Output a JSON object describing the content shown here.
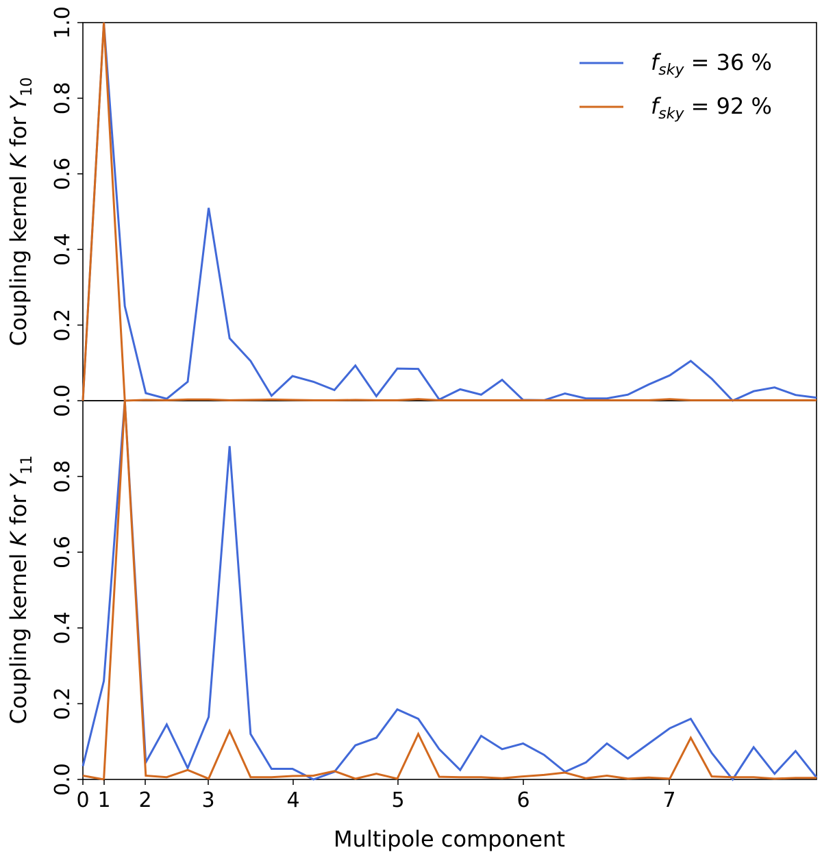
{
  "chart_data": {
    "type": "line",
    "xlabel": "Multipole component",
    "x_ticks": [
      "0",
      "1",
      "2",
      "3",
      "4",
      "5",
      "6",
      "7"
    ],
    "colors": {
      "fsky36": "#4169d8",
      "fsky92": "#d2691e",
      "axis": "#000000"
    },
    "legend": {
      "placement": "top-right",
      "entries": [
        {
          "key": "fsky36",
          "math_var": "f",
          "math_sub": "sky",
          "text": " = 36 %"
        },
        {
          "key": "fsky92",
          "math_var": "f",
          "math_sub": "sky",
          "text": " = 92 %"
        }
      ]
    },
    "panels": [
      {
        "id": "y10",
        "ylabel_prefix": "Coupling kernel ",
        "ylabel_var": "K",
        "ylabel_mid": " for ",
        "ylabel_sym": "Y",
        "ylabel_sub": "10",
        "ylim": [
          0,
          1.0
        ],
        "y_ticks": [
          "0.0",
          "0.2",
          "0.4",
          "0.6",
          "0.8",
          "1.0"
        ],
        "series": [
          {
            "name": "fsky36",
            "values": [
              0.0,
              1.0,
              0.25,
              0.02,
              0.005,
              0.05,
              0.51,
              0.165,
              0.105,
              0.013,
              0.065,
              0.05,
              0.028,
              0.093,
              0.012,
              0.085,
              0.084,
              0.003,
              0.03,
              0.016,
              0.055,
              0.002,
              0.001,
              0.019,
              0.006,
              0.006,
              0.016,
              0.043,
              0.067,
              0.105,
              0.058,
              0.0,
              0.025,
              0.035,
              0.015,
              0.008
            ]
          },
          {
            "name": "fsky92",
            "values": [
              0.0,
              1.0,
              0.0,
              0.002,
              0.001,
              0.003,
              0.003,
              0.001,
              0.002,
              0.003,
              0.002,
              0.001,
              0.001,
              0.002,
              0.001,
              0.001,
              0.004,
              0.001,
              0.001,
              0.001,
              0.001,
              0.001,
              0.001,
              0.001,
              0.001,
              0.001,
              0.001,
              0.001,
              0.004,
              0.001,
              0.001,
              0.001,
              0.001,
              0.001,
              0.001,
              0.001
            ]
          }
        ]
      },
      {
        "id": "y11",
        "ylabel_prefix": "Coupling kernel ",
        "ylabel_var": "K",
        "ylabel_mid": " for ",
        "ylabel_sym": "Y",
        "ylabel_sub": "11",
        "ylim": [
          0,
          1.0
        ],
        "y_ticks": [
          "0.0",
          "0.2",
          "0.4",
          "0.6",
          "0.8"
        ],
        "series": [
          {
            "name": "fsky36",
            "values": [
              0.035,
              0.26,
              1.0,
              0.045,
              0.145,
              0.03,
              0.165,
              0.88,
              0.12,
              0.028,
              0.028,
              0.0,
              0.02,
              0.09,
              0.11,
              0.185,
              0.16,
              0.08,
              0.025,
              0.115,
              0.08,
              0.095,
              0.065,
              0.02,
              0.045,
              0.095,
              0.055,
              0.095,
              0.135,
              0.16,
              0.07,
              0.0,
              0.085,
              0.015,
              0.075,
              0.005
            ]
          },
          {
            "name": "fsky92",
            "values": [
              0.01,
              0.0,
              1.0,
              0.01,
              0.006,
              0.025,
              0.002,
              0.128,
              0.006,
              0.006,
              0.009,
              0.01,
              0.022,
              0.002,
              0.015,
              0.002,
              0.12,
              0.007,
              0.006,
              0.006,
              0.003,
              0.008,
              0.012,
              0.018,
              0.003,
              0.01,
              0.002,
              0.005,
              0.002,
              0.11,
              0.008,
              0.006,
              0.006,
              0.002,
              0.004,
              0.004
            ]
          }
        ]
      }
    ]
  }
}
